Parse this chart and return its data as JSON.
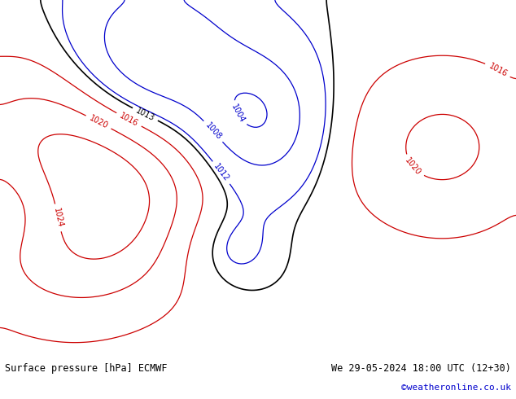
{
  "title_left": "Surface pressure [hPa] ECMWF",
  "title_right": "We 29-05-2024 18:00 UTC (12+30)",
  "copyright": "©weatheronline.co.uk",
  "figsize": [
    6.34,
    4.9
  ],
  "dpi": 100,
  "bg_color": "#e8e8e8",
  "ocean_color": "#d8d8d8",
  "land_color": "#90c870",
  "text_color_left": "#000000",
  "text_color_right": "#000000",
  "copyright_color": "#0000cc",
  "footer_bg": "#ffffff",
  "isobar_red_color": "#cc0000",
  "isobar_blue_color": "#0000cc",
  "isobar_black_color": "#000000",
  "label_fontsize": 7,
  "footer_fontsize": 8.5
}
